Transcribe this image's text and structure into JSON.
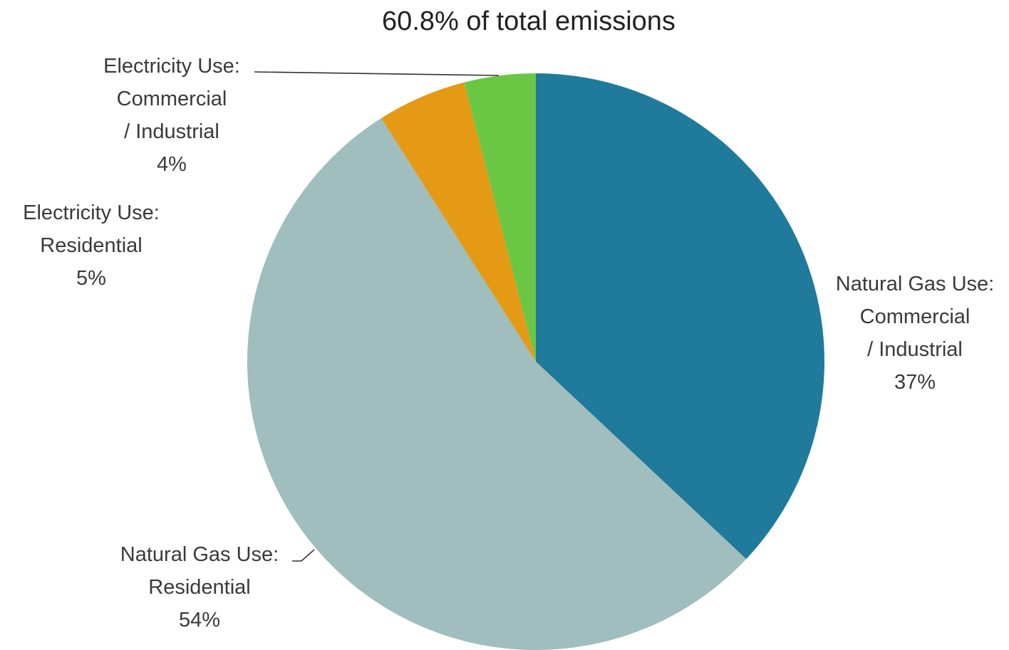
{
  "chart_data": {
    "type": "pie",
    "title": "60.8% of total emissions",
    "start_angle_deg": 0,
    "direction": "clockwise",
    "slices": [
      {
        "label_lines": [
          "Natural Gas Use:",
          "Commercial",
          "/ Industrial",
          "37%"
        ],
        "value": 37,
        "color": "#1f7a9b"
      },
      {
        "label_lines": [
          "Natural Gas Use:",
          "Residential",
          "54%"
        ],
        "value": 54,
        "color": "#9fbebd"
      },
      {
        "label_lines": [
          "Electricity Use:",
          "Residential",
          "5%"
        ],
        "value": 5,
        "color": "#e59a15"
      },
      {
        "label_lines": [
          "Electricity Use:",
          "Commercial",
          "/ Industrial",
          "4%"
        ],
        "value": 4,
        "color": "#6ac744"
      }
    ]
  }
}
